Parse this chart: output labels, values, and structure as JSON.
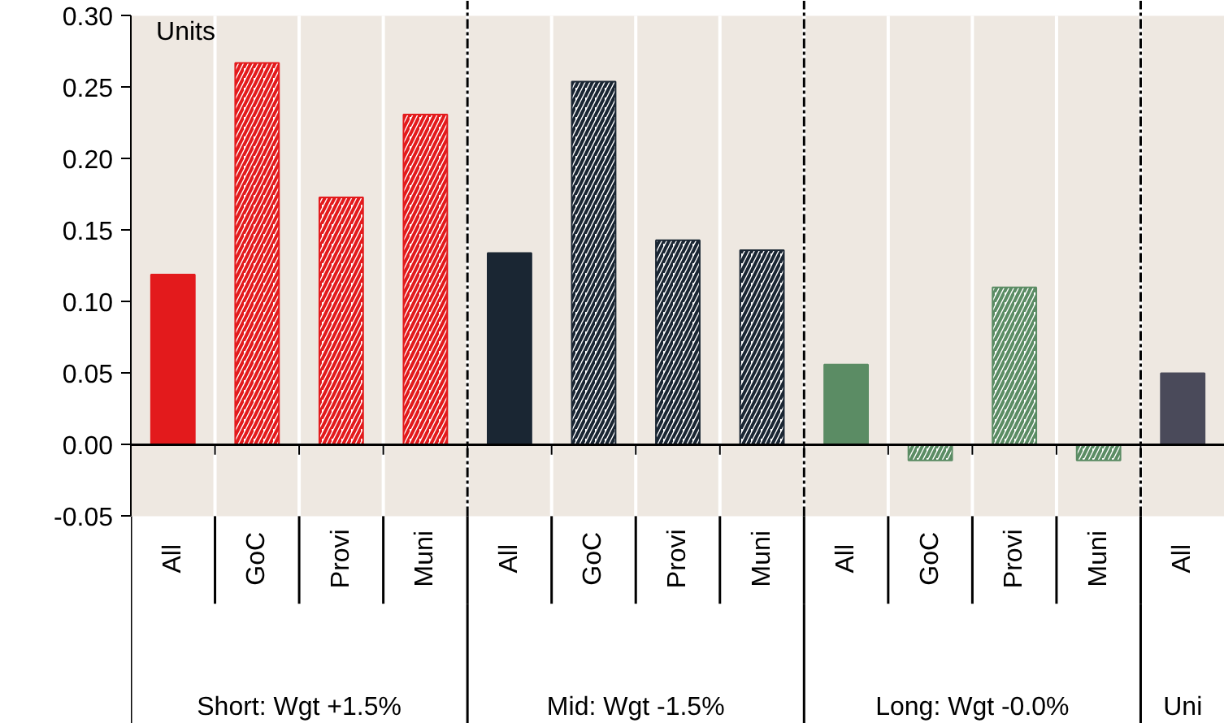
{
  "chart_data": {
    "type": "bar",
    "ylabel": "Units",
    "categories": [
      "All",
      "GoC",
      "Provi",
      "Muni",
      "All",
      "GoC",
      "Provi",
      "Muni",
      "All",
      "GoC",
      "Provi",
      "Muni",
      "All"
    ],
    "series": [
      {
        "color": "#e31a1c",
        "values": [
          0.119,
          0.267,
          0.173,
          0.231,
          null,
          null,
          null,
          null,
          null,
          null,
          null,
          null,
          null
        ]
      },
      {
        "color": "#1a2633",
        "values": [
          null,
          null,
          null,
          null,
          0.134,
          0.254,
          0.143,
          0.136,
          null,
          null,
          null,
          null,
          null
        ]
      },
      {
        "color": "#5b8c64",
        "values": [
          null,
          null,
          null,
          null,
          null,
          null,
          null,
          null,
          0.056,
          -0.011,
          0.11,
          -0.011,
          null
        ]
      },
      {
        "color": "#4a4a5a",
        "values": [
          null,
          null,
          null,
          null,
          null,
          null,
          null,
          null,
          null,
          null,
          null,
          null,
          0.05
        ]
      }
    ],
    "ylim": [
      -0.05,
      0.3
    ],
    "yticks": [
      {
        "value": -0.05,
        "label": "-0.05"
      },
      {
        "value": 0,
        "label": "0.00"
      },
      {
        "value": 0.05,
        "label": "0.05"
      },
      {
        "value": 0.1,
        "label": "0.10"
      },
      {
        "value": 0.15,
        "label": "0.15"
      },
      {
        "value": 0.2,
        "label": "0.20"
      },
      {
        "value": 0.25,
        "label": "0.25"
      },
      {
        "value": 0.3,
        "label": "0.30"
      }
    ],
    "grid": true,
    "annotations": [
      "Short: Wgt +1.5%",
      "Mid: Wgt -1.5%",
      "Long: Wgt -0.0%",
      "Uni"
    ]
  }
}
